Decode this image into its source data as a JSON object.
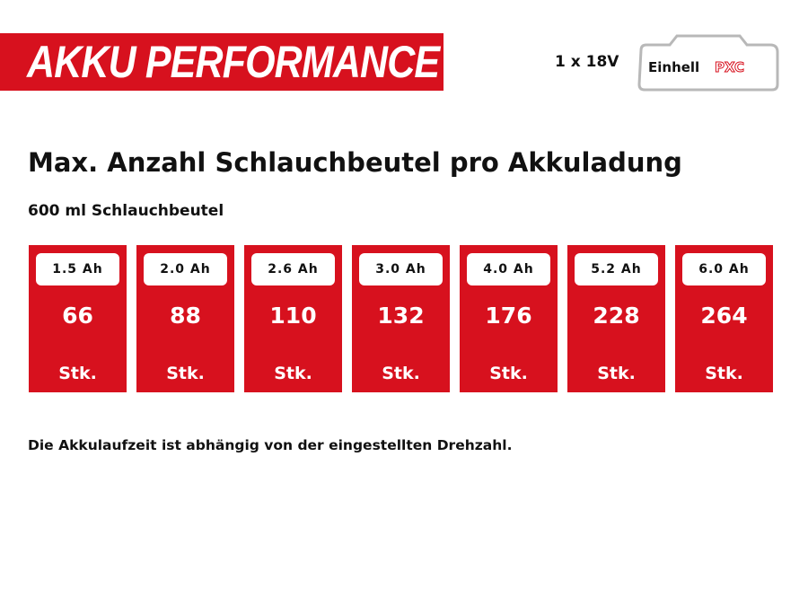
{
  "header": {
    "banner": "AKKU PERFORMANCE",
    "voltage": "1 x 18V",
    "logo": {
      "brand": "Einhell",
      "system": "PXC"
    }
  },
  "title": "Max. Anzahl Schlauchbeutel pro Akkuladung",
  "subtitle": "600 ml Schlauchbeutel",
  "cards": [
    {
      "capacity": "1.5 Ah",
      "count": 66,
      "unit": "Stk."
    },
    {
      "capacity": "2.0 Ah",
      "count": 88,
      "unit": "Stk."
    },
    {
      "capacity": "2.6 Ah",
      "count": 110,
      "unit": "Stk."
    },
    {
      "capacity": "3.0 Ah",
      "count": 132,
      "unit": "Stk."
    },
    {
      "capacity": "4.0 Ah",
      "count": 176,
      "unit": "Stk."
    },
    {
      "capacity": "5.2 Ah",
      "count": 228,
      "unit": "Stk."
    },
    {
      "capacity": "6.0 Ah",
      "count": 264,
      "unit": "Stk."
    }
  ],
  "footnote": "Die Akkulaufzeit ist abhängig von der eingestellten Drehzahl."
}
